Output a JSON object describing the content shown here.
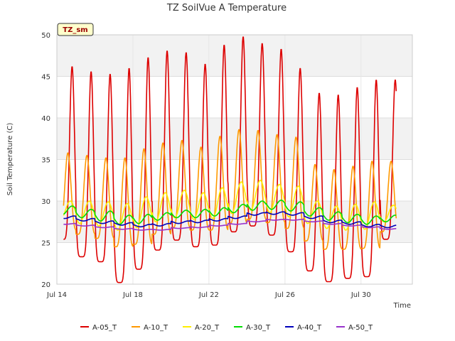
{
  "chart_data": {
    "type": "line",
    "title": "TZ SoilVue A Temperature",
    "xlabel": "Time",
    "ylabel": "Soil Temperature (C)",
    "badge": "TZ_sm",
    "ylim": [
      20,
      50
    ],
    "xlim": [
      14.0,
      32.7
    ],
    "yticks": [
      20,
      25,
      30,
      35,
      40,
      45,
      50
    ],
    "xticks": [
      {
        "day": 14.0,
        "label": "Jul 14"
      },
      {
        "day": 18.0,
        "label": "Jul 18"
      },
      {
        "day": 22.0,
        "label": "Jul 22"
      },
      {
        "day": 26.0,
        "label": "Jul 26"
      },
      {
        "day": 30.0,
        "label": "Jul 30"
      }
    ],
    "day_numbers": [
      14,
      15,
      16,
      17,
      18,
      19,
      20,
      21,
      22,
      23,
      24,
      25,
      26,
      27,
      28,
      29,
      30,
      31
    ],
    "series": [
      {
        "name": "A-05_T",
        "color": "#dd0000",
        "phase": 0.0,
        "amp_up": 0.8,
        "amp_down": 0.2,
        "sharp": 3,
        "max": [
          46.2,
          45.6,
          45.3,
          46.0,
          47.3,
          48.1,
          47.9,
          46.5,
          48.8,
          49.8,
          49.0,
          48.3,
          46.0,
          43.0,
          42.8,
          43.7,
          44.6,
          44.6
        ],
        "min": [
          25.4,
          23.3,
          22.7,
          20.2,
          21.8,
          24.1,
          25.3,
          24.5,
          24.7,
          26.3,
          27.0,
          25.9,
          23.9,
          21.6,
          20.3,
          20.7,
          20.9,
          25.4
        ]
      },
      {
        "name": "A-10_T",
        "color": "#ff9900",
        "phase": 0.08,
        "amp_up": 0.5,
        "amp_down": 0.5,
        "sharp": 2,
        "max": [
          35.8,
          35.5,
          35.2,
          35.2,
          36.3,
          37.0,
          37.3,
          36.5,
          37.8,
          38.6,
          38.5,
          38.0,
          37.7,
          34.4,
          33.8,
          34.2,
          34.8,
          34.8
        ],
        "min": [
          26.5,
          26.0,
          25.5,
          24.5,
          24.8,
          26.0,
          26.8,
          26.5,
          26.5,
          27.3,
          27.8,
          27.4,
          26.7,
          25.2,
          24.2,
          24.2,
          24.3,
          26.3
        ]
      },
      {
        "name": "A-20_T",
        "color": "#ffee00",
        "phase": 0.2,
        "amp_up": 0.5,
        "amp_down": 0.5,
        "sharp": 1,
        "max": [
          30.0,
          30.0,
          29.9,
          29.7,
          30.5,
          31.0,
          31.3,
          31.0,
          31.6,
          32.3,
          32.5,
          32.0,
          31.8,
          30.0,
          29.4,
          29.6,
          29.9,
          29.5
        ],
        "min": [
          27.8,
          27.3,
          27.0,
          26.5,
          26.8,
          27.5,
          28.0,
          27.8,
          27.9,
          28.5,
          28.9,
          28.6,
          28.1,
          27.3,
          26.7,
          26.5,
          26.6,
          27.5
        ]
      },
      {
        "name": "A-30_T",
        "color": "#00dd00",
        "phase": 0.3,
        "amp_up": 0.5,
        "amp_down": 0.5,
        "sharp": 1,
        "max": [
          29.4,
          29.0,
          28.8,
          28.3,
          28.4,
          28.6,
          28.9,
          29.0,
          29.2,
          29.6,
          30.0,
          30.1,
          29.9,
          29.2,
          28.7,
          28.4,
          28.2,
          28.3
        ],
        "min": [
          28.4,
          28.0,
          27.6,
          27.2,
          27.3,
          27.7,
          28.0,
          28.0,
          28.2,
          28.6,
          28.9,
          29.0,
          28.8,
          28.2,
          27.7,
          27.4,
          27.2,
          27.5
        ]
      },
      {
        "name": "A-40_T",
        "color": "#0000bb",
        "phase": 0.4,
        "amp_up": 0.5,
        "amp_down": 0.5,
        "sharp": 1,
        "max": [
          28.2,
          27.9,
          27.6,
          27.4,
          27.2,
          27.3,
          27.6,
          27.7,
          27.9,
          28.2,
          28.6,
          28.7,
          28.6,
          28.2,
          27.7,
          27.5,
          27.2,
          27.1
        ],
        "min": [
          27.9,
          27.6,
          27.3,
          27.1,
          26.9,
          27.0,
          27.3,
          27.4,
          27.6,
          27.9,
          28.3,
          28.4,
          28.3,
          27.9,
          27.4,
          27.2,
          26.9,
          26.8
        ]
      },
      {
        "name": "A-50_T",
        "color": "#9933cc",
        "phase": 0.45,
        "amp_up": 0.5,
        "amp_down": 0.5,
        "sharp": 1,
        "max": [
          27.3,
          27.1,
          26.9,
          26.7,
          26.6,
          26.6,
          26.8,
          26.9,
          27.1,
          27.3,
          27.6,
          27.8,
          27.8,
          27.6,
          27.3,
          27.1,
          26.9,
          26.7
        ],
        "min": [
          27.2,
          27.0,
          26.8,
          26.6,
          26.5,
          26.5,
          26.7,
          26.8,
          27.0,
          27.2,
          27.5,
          27.7,
          27.7,
          27.5,
          27.2,
          27.0,
          26.8,
          26.6
        ]
      }
    ],
    "legend": [
      {
        "label": "A-05_T",
        "color": "#dd0000"
      },
      {
        "label": "A-10_T",
        "color": "#ff9900"
      },
      {
        "label": "A-20_T",
        "color": "#ffee00"
      },
      {
        "label": "A-30_T",
        "color": "#00dd00"
      },
      {
        "label": "A-40_T",
        "color": "#0000bb"
      },
      {
        "label": "A-50_T",
        "color": "#9933cc"
      }
    ],
    "band_color": "#f2f2f2",
    "badge_fill": "#ffffcc",
    "badge_border": "#333333"
  }
}
